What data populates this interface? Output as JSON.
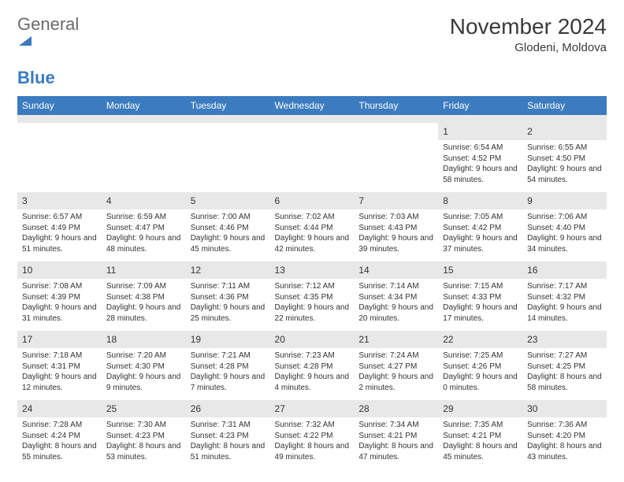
{
  "logo": {
    "general": "General",
    "blue": "Blue"
  },
  "title": "November 2024",
  "location": "Glodeni, Moldova",
  "colors": {
    "header_bg": "#3b7bbf",
    "header_text": "#ffffff",
    "daynum_bg": "#e8e8e8",
    "text": "#333333",
    "logo_gray": "#6a6a6a",
    "logo_blue": "#3b7bbf",
    "page_bg": "#ffffff"
  },
  "fonts": {
    "title_size": 28,
    "location_size": 15,
    "header_size": 12,
    "cell_size": 10,
    "daynum_size": 12
  },
  "day_names": [
    "Sunday",
    "Monday",
    "Tuesday",
    "Wednesday",
    "Thursday",
    "Friday",
    "Saturday"
  ],
  "weeks": [
    [
      {
        "n": "",
        "sr": "",
        "ss": "",
        "dl": ""
      },
      {
        "n": "",
        "sr": "",
        "ss": "",
        "dl": ""
      },
      {
        "n": "",
        "sr": "",
        "ss": "",
        "dl": ""
      },
      {
        "n": "",
        "sr": "",
        "ss": "",
        "dl": ""
      },
      {
        "n": "",
        "sr": "",
        "ss": "",
        "dl": ""
      },
      {
        "n": "1",
        "sr": "Sunrise: 6:54 AM",
        "ss": "Sunset: 4:52 PM",
        "dl": "Daylight: 9 hours and 58 minutes."
      },
      {
        "n": "2",
        "sr": "Sunrise: 6:55 AM",
        "ss": "Sunset: 4:50 PM",
        "dl": "Daylight: 9 hours and 54 minutes."
      }
    ],
    [
      {
        "n": "3",
        "sr": "Sunrise: 6:57 AM",
        "ss": "Sunset: 4:49 PM",
        "dl": "Daylight: 9 hours and 51 minutes."
      },
      {
        "n": "4",
        "sr": "Sunrise: 6:59 AM",
        "ss": "Sunset: 4:47 PM",
        "dl": "Daylight: 9 hours and 48 minutes."
      },
      {
        "n": "5",
        "sr": "Sunrise: 7:00 AM",
        "ss": "Sunset: 4:46 PM",
        "dl": "Daylight: 9 hours and 45 minutes."
      },
      {
        "n": "6",
        "sr": "Sunrise: 7:02 AM",
        "ss": "Sunset: 4:44 PM",
        "dl": "Daylight: 9 hours and 42 minutes."
      },
      {
        "n": "7",
        "sr": "Sunrise: 7:03 AM",
        "ss": "Sunset: 4:43 PM",
        "dl": "Daylight: 9 hours and 39 minutes."
      },
      {
        "n": "8",
        "sr": "Sunrise: 7:05 AM",
        "ss": "Sunset: 4:42 PM",
        "dl": "Daylight: 9 hours and 37 minutes."
      },
      {
        "n": "9",
        "sr": "Sunrise: 7:06 AM",
        "ss": "Sunset: 4:40 PM",
        "dl": "Daylight: 9 hours and 34 minutes."
      }
    ],
    [
      {
        "n": "10",
        "sr": "Sunrise: 7:08 AM",
        "ss": "Sunset: 4:39 PM",
        "dl": "Daylight: 9 hours and 31 minutes."
      },
      {
        "n": "11",
        "sr": "Sunrise: 7:09 AM",
        "ss": "Sunset: 4:38 PM",
        "dl": "Daylight: 9 hours and 28 minutes."
      },
      {
        "n": "12",
        "sr": "Sunrise: 7:11 AM",
        "ss": "Sunset: 4:36 PM",
        "dl": "Daylight: 9 hours and 25 minutes."
      },
      {
        "n": "13",
        "sr": "Sunrise: 7:12 AM",
        "ss": "Sunset: 4:35 PM",
        "dl": "Daylight: 9 hours and 22 minutes."
      },
      {
        "n": "14",
        "sr": "Sunrise: 7:14 AM",
        "ss": "Sunset: 4:34 PM",
        "dl": "Daylight: 9 hours and 20 minutes."
      },
      {
        "n": "15",
        "sr": "Sunrise: 7:15 AM",
        "ss": "Sunset: 4:33 PM",
        "dl": "Daylight: 9 hours and 17 minutes."
      },
      {
        "n": "16",
        "sr": "Sunrise: 7:17 AM",
        "ss": "Sunset: 4:32 PM",
        "dl": "Daylight: 9 hours and 14 minutes."
      }
    ],
    [
      {
        "n": "17",
        "sr": "Sunrise: 7:18 AM",
        "ss": "Sunset: 4:31 PM",
        "dl": "Daylight: 9 hours and 12 minutes."
      },
      {
        "n": "18",
        "sr": "Sunrise: 7:20 AM",
        "ss": "Sunset: 4:30 PM",
        "dl": "Daylight: 9 hours and 9 minutes."
      },
      {
        "n": "19",
        "sr": "Sunrise: 7:21 AM",
        "ss": "Sunset: 4:28 PM",
        "dl": "Daylight: 9 hours and 7 minutes."
      },
      {
        "n": "20",
        "sr": "Sunrise: 7:23 AM",
        "ss": "Sunset: 4:28 PM",
        "dl": "Daylight: 9 hours and 4 minutes."
      },
      {
        "n": "21",
        "sr": "Sunrise: 7:24 AM",
        "ss": "Sunset: 4:27 PM",
        "dl": "Daylight: 9 hours and 2 minutes."
      },
      {
        "n": "22",
        "sr": "Sunrise: 7:25 AM",
        "ss": "Sunset: 4:26 PM",
        "dl": "Daylight: 9 hours and 0 minutes."
      },
      {
        "n": "23",
        "sr": "Sunrise: 7:27 AM",
        "ss": "Sunset: 4:25 PM",
        "dl": "Daylight: 8 hours and 58 minutes."
      }
    ],
    [
      {
        "n": "24",
        "sr": "Sunrise: 7:28 AM",
        "ss": "Sunset: 4:24 PM",
        "dl": "Daylight: 8 hours and 55 minutes."
      },
      {
        "n": "25",
        "sr": "Sunrise: 7:30 AM",
        "ss": "Sunset: 4:23 PM",
        "dl": "Daylight: 8 hours and 53 minutes."
      },
      {
        "n": "26",
        "sr": "Sunrise: 7:31 AM",
        "ss": "Sunset: 4:23 PM",
        "dl": "Daylight: 8 hours and 51 minutes."
      },
      {
        "n": "27",
        "sr": "Sunrise: 7:32 AM",
        "ss": "Sunset: 4:22 PM",
        "dl": "Daylight: 8 hours and 49 minutes."
      },
      {
        "n": "28",
        "sr": "Sunrise: 7:34 AM",
        "ss": "Sunset: 4:21 PM",
        "dl": "Daylight: 8 hours and 47 minutes."
      },
      {
        "n": "29",
        "sr": "Sunrise: 7:35 AM",
        "ss": "Sunset: 4:21 PM",
        "dl": "Daylight: 8 hours and 45 minutes."
      },
      {
        "n": "30",
        "sr": "Sunrise: 7:36 AM",
        "ss": "Sunset: 4:20 PM",
        "dl": "Daylight: 8 hours and 43 minutes."
      }
    ]
  ]
}
